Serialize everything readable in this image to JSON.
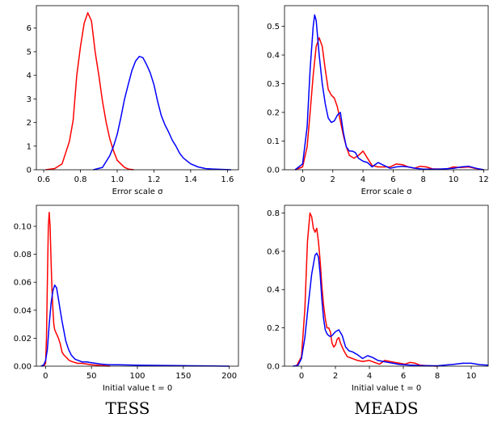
{
  "captions": [
    "TESS",
    "MEADS"
  ],
  "colors": {
    "series_a": "#ff0000",
    "series_b": "#0000ff"
  },
  "chart_data": [
    {
      "type": "line",
      "xlabel": "Error scale σ",
      "xlim": [
        0.56,
        1.66
      ],
      "ylim": [
        0,
        6.95
      ],
      "xticks": [
        0.6,
        0.8,
        1.0,
        1.2,
        1.4,
        1.6
      ],
      "xtick_labels": [
        "0.6",
        "0.8",
        "1.0",
        "1.2",
        "1.4",
        "1.6"
      ],
      "yticks": [
        0,
        1,
        2,
        3,
        4,
        5,
        6
      ],
      "ytick_labels": [
        "0",
        "1",
        "2",
        "3",
        "4",
        "5",
        "6"
      ],
      "series": [
        {
          "color": "#ff0000",
          "x": [
            0.61,
            0.66,
            0.7,
            0.74,
            0.76,
            0.78,
            0.8,
            0.82,
            0.84,
            0.86,
            0.88,
            0.9,
            0.92,
            0.94,
            0.96,
            0.98,
            1.0,
            1.02,
            1.04,
            1.06,
            1.09
          ],
          "y": [
            0,
            0.05,
            0.25,
            1.2,
            2.1,
            4.0,
            5.2,
            6.2,
            6.65,
            6.3,
            5.0,
            4.0,
            2.9,
            2.0,
            1.3,
            0.8,
            0.4,
            0.25,
            0.1,
            0.03,
            0
          ]
        },
        {
          "color": "#0000ff",
          "x": [
            0.87,
            0.92,
            0.96,
            0.98,
            1.0,
            1.02,
            1.04,
            1.06,
            1.08,
            1.1,
            1.12,
            1.14,
            1.16,
            1.18,
            1.2,
            1.22,
            1.24,
            1.26,
            1.28,
            1.3,
            1.32,
            1.34,
            1.36,
            1.4,
            1.44,
            1.48,
            1.52,
            1.55,
            1.62
          ],
          "y": [
            0,
            0.1,
            0.6,
            1.0,
            1.5,
            2.2,
            3.0,
            3.6,
            4.2,
            4.6,
            4.8,
            4.75,
            4.45,
            4.1,
            3.6,
            2.9,
            2.3,
            1.9,
            1.6,
            1.25,
            1.0,
            0.7,
            0.5,
            0.25,
            0.12,
            0.05,
            0.03,
            0.02,
            0
          ]
        }
      ]
    },
    {
      "type": "line",
      "xlabel": "Error scale σ",
      "xlim": [
        -1.2,
        12.3
      ],
      "ylim": [
        0,
        0.572
      ],
      "xticks": [
        0,
        2,
        4,
        6,
        8,
        10,
        12
      ],
      "xtick_labels": [
        "0",
        "2",
        "4",
        "6",
        "8",
        "10",
        "12"
      ],
      "yticks": [
        0,
        0.1,
        0.2,
        0.3,
        0.4,
        0.5
      ],
      "ytick_labels": [
        "0.0",
        "0.1",
        "0.2",
        "0.3",
        "0.4",
        "0.5"
      ],
      "series": [
        {
          "color": "#ff0000",
          "x": [
            -0.5,
            0,
            0.3,
            0.5,
            0.7,
            0.9,
            1.1,
            1.3,
            1.5,
            1.7,
            1.9,
            2.1,
            2.3,
            2.5,
            2.7,
            2.9,
            3.1,
            3.4,
            3.7,
            4.0,
            4.3,
            4.6,
            5.0,
            5.4,
            5.8,
            6.2,
            6.6,
            7.0,
            7.4,
            7.8,
            8.2,
            8.6,
            9.5,
            10.0,
            10.5,
            11.0,
            11.4,
            12.0
          ],
          "y": [
            0,
            0.01,
            0.08,
            0.2,
            0.33,
            0.43,
            0.46,
            0.43,
            0.35,
            0.28,
            0.26,
            0.25,
            0.22,
            0.17,
            0.12,
            0.08,
            0.05,
            0.04,
            0.05,
            0.065,
            0.04,
            0.015,
            0.01,
            0.01,
            0.01,
            0.02,
            0.018,
            0.01,
            0.005,
            0.012,
            0.01,
            0.003,
            0.002,
            0.01,
            0.008,
            0.01,
            0.005,
            0
          ]
        },
        {
          "color": "#0000ff",
          "x": [
            -0.5,
            0,
            0.3,
            0.5,
            0.7,
            0.8,
            0.9,
            1.1,
            1.3,
            1.5,
            1.7,
            1.9,
            2.1,
            2.3,
            2.5,
            2.7,
            2.9,
            3.1,
            3.3,
            3.5,
            3.7,
            4.0,
            4.3,
            4.6,
            5.0,
            5.4,
            5.8,
            6.2,
            6.6,
            7.0,
            7.5,
            8.0,
            9.0,
            10.0,
            10.5,
            11.0,
            11.5,
            12.0
          ],
          "y": [
            0,
            0.02,
            0.15,
            0.35,
            0.5,
            0.54,
            0.52,
            0.4,
            0.3,
            0.23,
            0.18,
            0.165,
            0.17,
            0.19,
            0.2,
            0.13,
            0.08,
            0.065,
            0.065,
            0.06,
            0.04,
            0.03,
            0.025,
            0.01,
            0.025,
            0.015,
            0.005,
            0.01,
            0.012,
            0.01,
            0.005,
            0.002,
            0.002,
            0.005,
            0.01,
            0.012,
            0.005,
            0
          ]
        }
      ]
    },
    {
      "type": "line",
      "xlabel": "Initial value t = 0",
      "xlim": [
        -10,
        210
      ],
      "ylim": [
        0,
        0.115
      ],
      "xticks": [
        0,
        50,
        100,
        150,
        200
      ],
      "xtick_labels": [
        "0",
        "50",
        "100",
        "150",
        "200"
      ],
      "yticks": [
        0,
        0.02,
        0.04,
        0.06,
        0.08,
        0.1
      ],
      "ytick_labels": [
        "0.00",
        "0.02",
        "0.04",
        "0.06",
        "0.08",
        "0.10"
      ],
      "series": [
        {
          "color": "#ff0000",
          "x": [
            -2,
            0,
            1,
            2,
            3,
            4,
            5,
            6,
            7,
            8,
            9,
            10,
            12,
            14,
            16,
            18,
            20,
            23,
            26,
            30,
            35,
            40,
            50,
            60,
            70
          ],
          "y": [
            0,
            0.002,
            0.02,
            0.06,
            0.1,
            0.11,
            0.1,
            0.075,
            0.055,
            0.04,
            0.03,
            0.026,
            0.023,
            0.02,
            0.016,
            0.01,
            0.008,
            0.006,
            0.004,
            0.003,
            0.002,
            0.002,
            0.001,
            0.0005,
            0
          ]
        },
        {
          "color": "#0000ff",
          "x": [
            -5,
            -2,
            0,
            2,
            4,
            6,
            8,
            10,
            12,
            14,
            16,
            18,
            20,
            22,
            25,
            28,
            32,
            36,
            40,
            45,
            50,
            55,
            60,
            70,
            80,
            100,
            130,
            160,
            200
          ],
          "y": [
            0,
            0.001,
            0.004,
            0.012,
            0.03,
            0.045,
            0.054,
            0.058,
            0.056,
            0.048,
            0.04,
            0.032,
            0.025,
            0.018,
            0.012,
            0.008,
            0.005,
            0.004,
            0.003,
            0.003,
            0.0025,
            0.002,
            0.0015,
            0.001,
            0.001,
            0.0007,
            0.0005,
            0.0003,
            0
          ]
        }
      ]
    },
    {
      "type": "line",
      "xlabel": "Initial value t = 0",
      "xlim": [
        -1.0,
        11.0
      ],
      "ylim": [
        0,
        0.84
      ],
      "xticks": [
        0,
        2,
        4,
        6,
        8,
        10
      ],
      "xtick_labels": [
        "0",
        "2",
        "4",
        "6",
        "8",
        "10"
      ],
      "yticks": [
        0,
        0.2,
        0.4,
        0.6,
        0.8
      ],
      "ytick_labels": [
        "0.0",
        "0.2",
        "0.4",
        "0.6",
        "0.8"
      ],
      "series": [
        {
          "color": "#ff0000",
          "x": [
            -0.3,
            0,
            0.2,
            0.35,
            0.5,
            0.6,
            0.7,
            0.8,
            0.9,
            1.0,
            1.1,
            1.2,
            1.3,
            1.4,
            1.5,
            1.6,
            1.7,
            1.8,
            1.9,
            2.0,
            2.1,
            2.2,
            2.3,
            2.5,
            2.7,
            3.0,
            3.3,
            3.6,
            4.0,
            4.3,
            4.6,
            4.9,
            5.2,
            5.5,
            5.8,
            6.1,
            6.4,
            6.7,
            7.0,
            7.5,
            8.0
          ],
          "y": [
            0,
            0.05,
            0.3,
            0.65,
            0.8,
            0.78,
            0.72,
            0.7,
            0.72,
            0.65,
            0.55,
            0.42,
            0.32,
            0.25,
            0.2,
            0.2,
            0.18,
            0.12,
            0.1,
            0.11,
            0.14,
            0.15,
            0.12,
            0.08,
            0.05,
            0.04,
            0.03,
            0.025,
            0.03,
            0.02,
            0.01,
            0.03,
            0.025,
            0.02,
            0.015,
            0.01,
            0.02,
            0.015,
            0.005,
            0.002,
            0
          ]
        },
        {
          "color": "#0000ff",
          "x": [
            -0.5,
            -0.2,
            0,
            0.2,
            0.4,
            0.6,
            0.8,
            0.9,
            1.0,
            1.1,
            1.2,
            1.3,
            1.4,
            1.5,
            1.6,
            1.7,
            1.8,
            1.9,
            2.0,
            2.2,
            2.4,
            2.6,
            2.8,
            3.0,
            3.3,
            3.6,
            3.9,
            4.2,
            4.5,
            4.8,
            5.1,
            5.4,
            5.7,
            6.0,
            6.5,
            7.0,
            8.0,
            9.0,
            9.5,
            10.0,
            10.5,
            11.0
          ],
          "y": [
            0,
            0.005,
            0.04,
            0.15,
            0.32,
            0.48,
            0.58,
            0.59,
            0.57,
            0.48,
            0.35,
            0.25,
            0.19,
            0.17,
            0.16,
            0.155,
            0.16,
            0.17,
            0.18,
            0.19,
            0.16,
            0.1,
            0.08,
            0.075,
            0.06,
            0.04,
            0.055,
            0.045,
            0.03,
            0.025,
            0.02,
            0.015,
            0.01,
            0.008,
            0.005,
            0.003,
            0.002,
            0.01,
            0.015,
            0.015,
            0.008,
            0.005
          ]
        }
      ]
    }
  ]
}
